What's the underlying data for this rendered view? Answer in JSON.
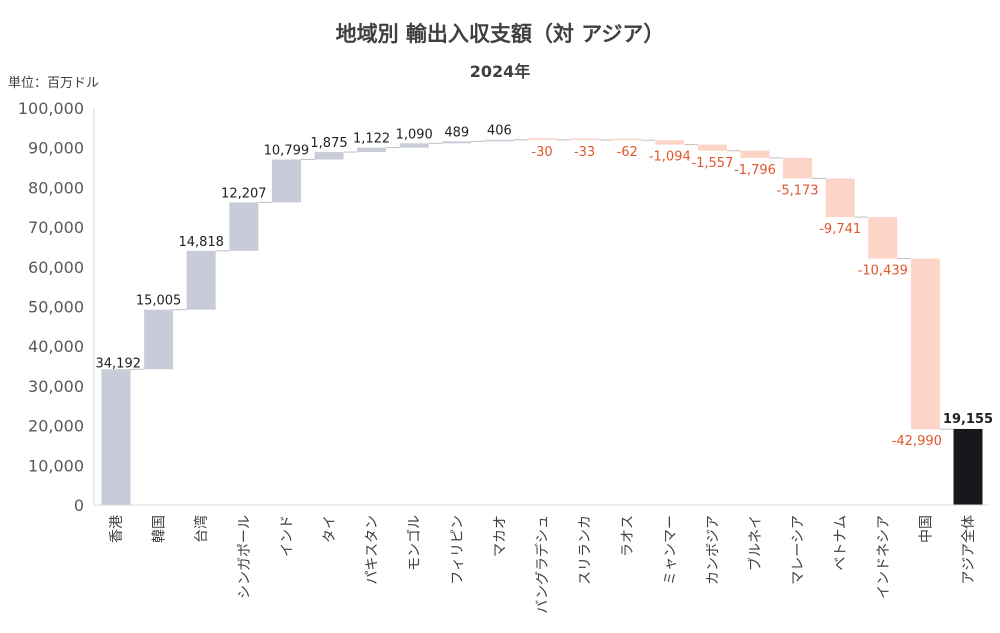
{
  "chart_data": {
    "type": "waterfall",
    "title": "地域別 輸出入収支額（対 アジア）",
    "subtitle": "2024年",
    "unit_label": "単位：百万ドル",
    "ylim": [
      0,
      100000
    ],
    "yticks": [
      "0",
      "10,000",
      "20,000",
      "30,000",
      "40,000",
      "50,000",
      "60,000",
      "70,000",
      "80,000",
      "90,000",
      "100,000"
    ],
    "categories": [
      "香港",
      "韓国",
      "台湾",
      "シンガポール",
      "インド",
      "タイ",
      "パキスタン",
      "モンゴル",
      "フィリピン",
      "マカオ",
      "バングラデシュ",
      "スリランカ",
      "ラオス",
      "ミャンマー",
      "カンボジア",
      "ブルネイ",
      "マレーシア",
      "ベトナム",
      "インドネシア",
      "中国",
      "アジア全体"
    ],
    "values": [
      34192,
      15005,
      14818,
      12207,
      10799,
      1875,
      1122,
      1090,
      489,
      406,
      -30,
      -33,
      -62,
      -1094,
      -1557,
      -1796,
      -5173,
      -9741,
      -10439,
      -42990,
      19155
    ],
    "value_labels": [
      "34,192",
      "15,005",
      "14,818",
      "12,207",
      "10,799",
      "1,875",
      "1,122",
      "1,090",
      "489",
      "406",
      "-30",
      "-33",
      "-62",
      "-1,094",
      "-1,557",
      "-1,796",
      "-5,173",
      "-9,741",
      "-10,439",
      "-42,990",
      "19,155"
    ],
    "total_index": 20,
    "colors": {
      "increase": "#c8ccd8",
      "decrease": "#fdd4c8",
      "total": "#16181c",
      "negative_label": "#e2562e",
      "positive_label": "#222222",
      "connector": "#bfbfbf"
    }
  }
}
